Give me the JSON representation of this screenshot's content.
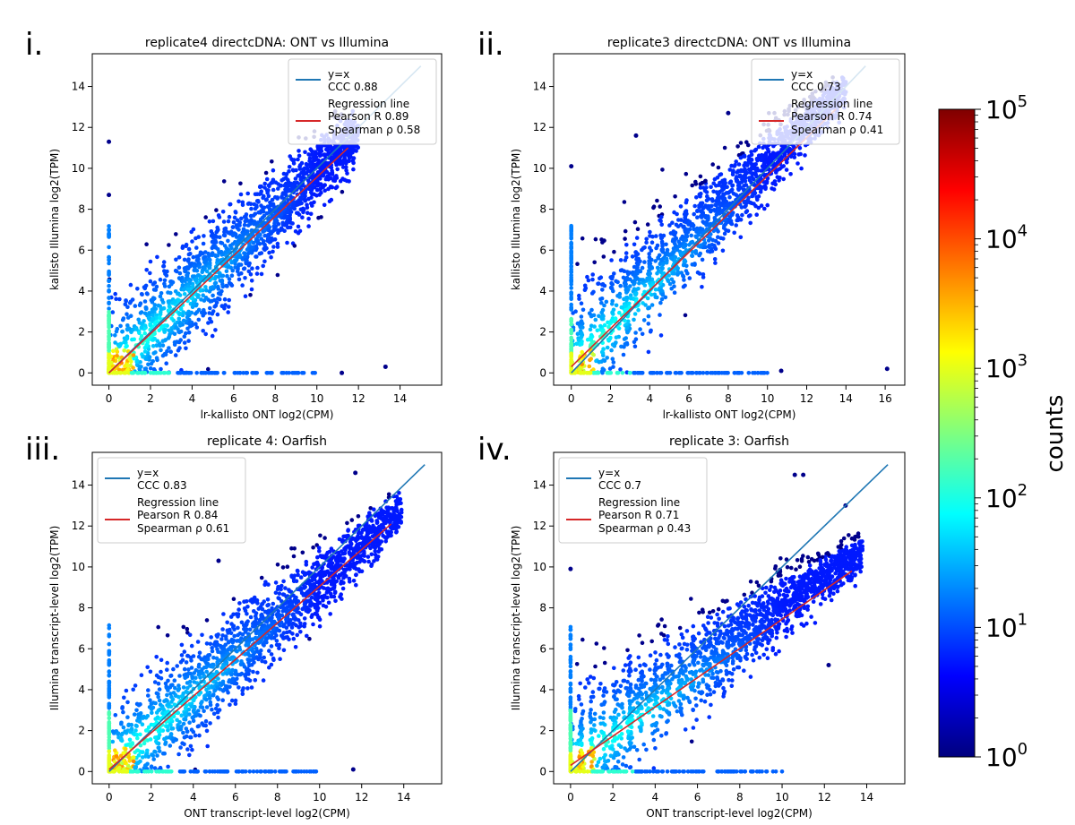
{
  "chart_data": [
    {
      "type": "scatter",
      "panel_label": "i.",
      "title": "replicate4 directcDNA: ONT vs Illumina",
      "xlabel": "lr-kallisto ONT log2(CPM)",
      "ylabel": "kallisto Illumina log2(TPM)",
      "xlim": [
        -0.8,
        16.0
      ],
      "ylim": [
        -0.6,
        15.6
      ],
      "xticks": [
        0,
        2,
        4,
        6,
        8,
        10,
        12,
        14
      ],
      "yticks": [
        0,
        2,
        4,
        6,
        8,
        10,
        12,
        14
      ],
      "legend": {
        "position": "top-right",
        "identity_label": "y=x",
        "ccc_label": "CCC 0.88",
        "regression_label": "Regression line",
        "pearson_label": "Pearson R 0.89",
        "spearman_label": "Spearman ρ 0.58"
      },
      "identity_line": {
        "x": [
          0,
          15
        ],
        "y": [
          0,
          15
        ]
      },
      "regression_line": {
        "x": [
          0,
          11.5
        ],
        "y": [
          0,
          11.0
        ]
      },
      "density_profile": "continuous",
      "outliers": [
        [
          0,
          11.3
        ],
        [
          0,
          8.7
        ],
        [
          11.2,
          0.0
        ],
        [
          13.3,
          0.3
        ]
      ]
    },
    {
      "type": "scatter",
      "panel_label": "ii.",
      "title": "replicate3 directcDNA: ONT vs Illumina",
      "xlabel": "lr-kallisto ONT log2(CPM)",
      "ylabel": "kallisto Illumina log2(TPM)",
      "xlim": [
        -0.9,
        17.0
      ],
      "ylim": [
        -0.6,
        15.6
      ],
      "xticks": [
        0,
        2,
        4,
        6,
        8,
        10,
        12,
        14,
        16
      ],
      "yticks": [
        0,
        2,
        4,
        6,
        8,
        10,
        12,
        14
      ],
      "legend": {
        "position": "top-right",
        "identity_label": "y=x",
        "ccc_label": "CCC 0.73",
        "regression_label": "Regression line",
        "pearson_label": "Pearson R 0.74",
        "spearman_label": "Spearman ρ 0.41"
      },
      "identity_line": {
        "x": [
          0,
          15
        ],
        "y": [
          0,
          15
        ]
      },
      "regression_line": {
        "x": [
          0,
          13.5
        ],
        "y": [
          0.3,
          12.9
        ]
      },
      "density_profile": "banded",
      "outliers": [
        [
          0,
          10.1
        ],
        [
          3.3,
          11.6
        ],
        [
          16.1,
          0.2
        ],
        [
          10.7,
          0.1
        ],
        [
          8.0,
          12.7
        ]
      ]
    },
    {
      "type": "scatter",
      "panel_label": "iii.",
      "title": "replicate 4: Oarfish",
      "xlabel": "ONT transcript-level log2(CPM)",
      "ylabel": "Illumina transcript-level log2(TPM)",
      "xlim": [
        -0.8,
        15.8
      ],
      "ylim": [
        -0.6,
        15.6
      ],
      "xticks": [
        0,
        2,
        4,
        6,
        8,
        10,
        12,
        14
      ],
      "yticks": [
        0,
        2,
        4,
        6,
        8,
        10,
        12,
        14
      ],
      "legend": {
        "position": "top-left",
        "identity_label": "y=x",
        "ccc_label": "CCC 0.83",
        "regression_label": "Regression line",
        "pearson_label": "Pearson R 0.84",
        "spearman_label": "Spearman ρ 0.61"
      },
      "identity_line": {
        "x": [
          0,
          15
        ],
        "y": [
          0,
          15
        ]
      },
      "regression_line": {
        "x": [
          0,
          13.4
        ],
        "y": [
          0.1,
          12.1
        ]
      },
      "density_profile": "continuous",
      "outliers": [
        [
          11.7,
          14.6
        ],
        [
          13.3,
          13.4
        ],
        [
          5.2,
          10.3
        ],
        [
          11.6,
          0.1
        ]
      ]
    },
    {
      "type": "scatter",
      "panel_label": "iv.",
      "title": "replicate 3: Oarfish",
      "xlabel": "ONT transcript-level log2(CPM)",
      "ylabel": "Illumina transcript-level log2(TPM)",
      "xlim": [
        -0.8,
        15.8
      ],
      "ylim": [
        -0.6,
        15.6
      ],
      "xticks": [
        0,
        2,
        4,
        6,
        8,
        10,
        12,
        14
      ],
      "yticks": [
        0,
        2,
        4,
        6,
        8,
        10,
        12,
        14
      ],
      "legend": {
        "position": "top-left",
        "identity_label": "y=x",
        "ccc_label": "CCC 0.7",
        "regression_label": "Regression line",
        "pearson_label": "Pearson R 0.71",
        "spearman_label": "Spearman ρ 0.43"
      },
      "identity_line": {
        "x": [
          0,
          15
        ],
        "y": [
          0,
          15
        ]
      },
      "regression_line": {
        "x": [
          0,
          13.3
        ],
        "y": [
          0.3,
          9.8
        ]
      },
      "density_profile": "banded",
      "outliers": [
        [
          0,
          9.9
        ],
        [
          10.6,
          14.5
        ],
        [
          11.0,
          14.5
        ],
        [
          13.0,
          13.0
        ],
        [
          12.2,
          5.2
        ]
      ]
    }
  ],
  "colorbar": {
    "label": "counts",
    "scale": "log",
    "ticks": [
      {
        "base": "10",
        "exp": "0",
        "value": 1
      },
      {
        "base": "10",
        "exp": "1",
        "value": 10
      },
      {
        "base": "10",
        "exp": "2",
        "value": 100
      },
      {
        "base": "10",
        "exp": "3",
        "value": 1000
      },
      {
        "base": "10",
        "exp": "4",
        "value": 10000
      },
      {
        "base": "10",
        "exp": "5",
        "value": 100000
      }
    ],
    "colormap": [
      "#00007f",
      "#0000ff",
      "#007fff",
      "#00ffff",
      "#7fff7f",
      "#ffff00",
      "#ff7f00",
      "#ff0000",
      "#7f0000"
    ]
  },
  "colors": {
    "identity_line": "#1f77b4",
    "regression_line": "#d62728",
    "sparse_point": "#00008b"
  }
}
